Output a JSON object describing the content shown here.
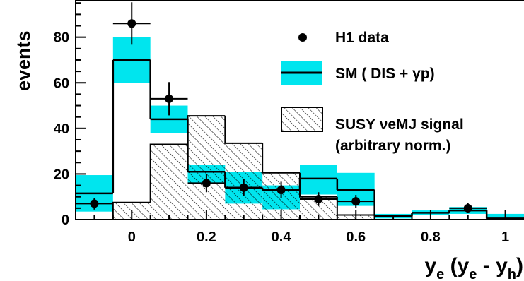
{
  "chart_data": {
    "type": "histogram",
    "ylabel": "events",
    "xlabel": {
      "main": "y",
      "sub1": "e",
      "open": " (y",
      "sub2": "e",
      "mid": " - y",
      "sub3": "h",
      "close": ")"
    },
    "xlim": [
      -0.15,
      1.05
    ],
    "ylim": [
      0,
      96
    ],
    "x_ticks": [
      {
        "value": 0,
        "label": "0"
      },
      {
        "value": 0.2,
        "label": "0.2"
      },
      {
        "value": 0.4,
        "label": "0.4"
      },
      {
        "value": 0.6,
        "label": "0.6"
      },
      {
        "value": 0.8,
        "label": "0.8"
      },
      {
        "value": 1.0,
        "label": "1"
      }
    ],
    "y_ticks": [
      {
        "value": 0,
        "label": "0"
      },
      {
        "value": 20,
        "label": "20"
      },
      {
        "value": 40,
        "label": "40"
      },
      {
        "value": 60,
        "label": "60"
      },
      {
        "value": 80,
        "label": "80"
      }
    ],
    "bin_edges": [
      -0.15,
      -0.05,
      0.05,
      0.15,
      0.25,
      0.35,
      0.45,
      0.55,
      0.65,
      0.75,
      0.85,
      0.95,
      1.05
    ],
    "series": [
      {
        "name": "H1 data",
        "kind": "points",
        "x": [
          -0.1,
          0.0,
          0.1,
          0.2,
          0.3,
          0.4,
          0.5,
          0.6,
          0.9
        ],
        "y": [
          7,
          86,
          53,
          16,
          14,
          13,
          9,
          8,
          5
        ],
        "yerr": [
          2.6,
          9.3,
          7.3,
          4,
          3.7,
          3.6,
          3,
          2.8,
          2.2
        ],
        "xerr": 0.05
      },
      {
        "name": "SM ( DIS + γp)",
        "kind": "histogram",
        "values": [
          11.5,
          70,
          44,
          21,
          14,
          13,
          18,
          13,
          1.5,
          3,
          4,
          0.5
        ],
        "band_low": [
          3.5,
          60,
          38,
          16,
          7,
          4.5,
          11,
          6,
          0.5,
          2,
          2.5,
          0
        ],
        "band_high": [
          19.5,
          80,
          50,
          24,
          21,
          15,
          24,
          20.5,
          2.5,
          4,
          5.5,
          2.5
        ]
      },
      {
        "name": "SUSY νeMJ signal",
        "name_line2": "(arbitrary norm.)",
        "kind": "hatched_histogram",
        "values": [
          0,
          7.5,
          33,
          45.5,
          33.5,
          20.5,
          10,
          2,
          0,
          0,
          0,
          0
        ]
      }
    ],
    "colors": {
      "band": "#00e5ee",
      "line": "#000000",
      "hatch": "#000000"
    },
    "legend_position": "top-right"
  }
}
